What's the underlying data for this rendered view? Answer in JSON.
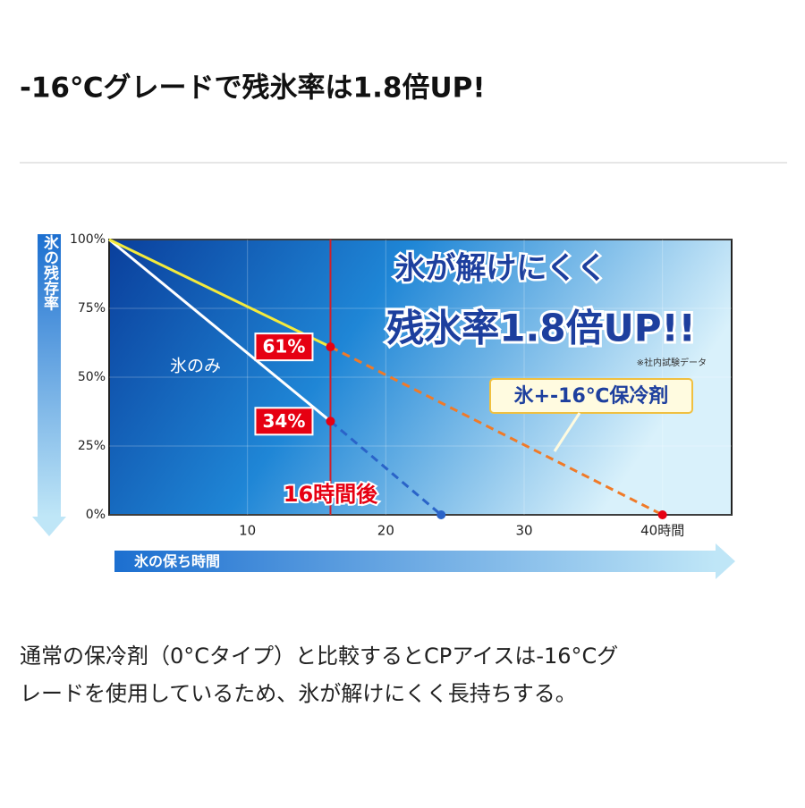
{
  "title": "-16℃グレードで残氷率は1.8倍UP!",
  "description": [
    "通常の保冷剤（0°Cタイプ）と比較するとCPアイスは-16°Cグ",
    "レードを使用しているため、氷が解けにくく長持ちする。"
  ],
  "chart_data": {
    "type": "line",
    "ylabel": "氷の残存率",
    "xlabel": "氷の保ち時間",
    "headline": [
      "氷が解けにくく",
      "残氷率1.8倍UP!!"
    ],
    "note": "※社内試験データ",
    "annotations": [
      {
        "text": "16時間後",
        "x": 16
      }
    ],
    "xlim": [
      0,
      45
    ],
    "ylim": [
      0,
      100
    ],
    "xticks": [
      10,
      20,
      30,
      {
        "value": 40,
        "label": "40時間"
      }
    ],
    "yticks": [
      {
        "value": 0,
        "label": "0%"
      },
      {
        "value": 25,
        "label": "25%"
      },
      {
        "value": 50,
        "label": "50%"
      },
      {
        "value": 75,
        "label": "75%"
      },
      {
        "value": 100,
        "label": "100%"
      }
    ],
    "grid": true,
    "marker_color": "#e60012",
    "series": [
      {
        "name": "氷のみ",
        "color": "#ffffff",
        "dash_color": "#2a63c8",
        "x": [
          0,
          16,
          24
        ],
        "values": [
          100,
          34,
          0
        ],
        "value_labels": [
          null,
          "34%",
          null
        ]
      },
      {
        "name": "氷+-16℃保冷剤",
        "color": "#f3ea3c",
        "dash_color": "#f07a28",
        "x": [
          0,
          16,
          40
        ],
        "values": [
          100,
          61,
          0
        ],
        "value_labels": [
          null,
          "61%",
          null
        ]
      }
    ]
  }
}
